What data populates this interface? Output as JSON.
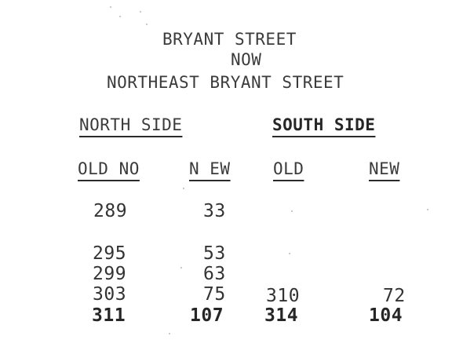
{
  "title": {
    "line1": "BRYANT STREET",
    "line2": "NOW",
    "line3": "NORTHEAST BRYANT STREET"
  },
  "sides": {
    "north": "NORTH SIDE",
    "south": "SOUTH SIDE"
  },
  "columns": {
    "north_old": "OLD NO",
    "north_new": "N EW",
    "south_old": "OLD",
    "south_new": "NEW"
  },
  "rows": {
    "r1": {
      "north_old": "289",
      "north_new": "33"
    },
    "r2": {
      "north_old": "295",
      "north_new": "53"
    },
    "r3": {
      "north_old": "299",
      "north_new": "63"
    },
    "r4": {
      "north_old": "303",
      "north_new": "75",
      "south_old": "310",
      "south_new": "72"
    },
    "r5": {
      "north_old": "311",
      "north_new": "107",
      "south_old": "314",
      "south_new": "104"
    }
  }
}
